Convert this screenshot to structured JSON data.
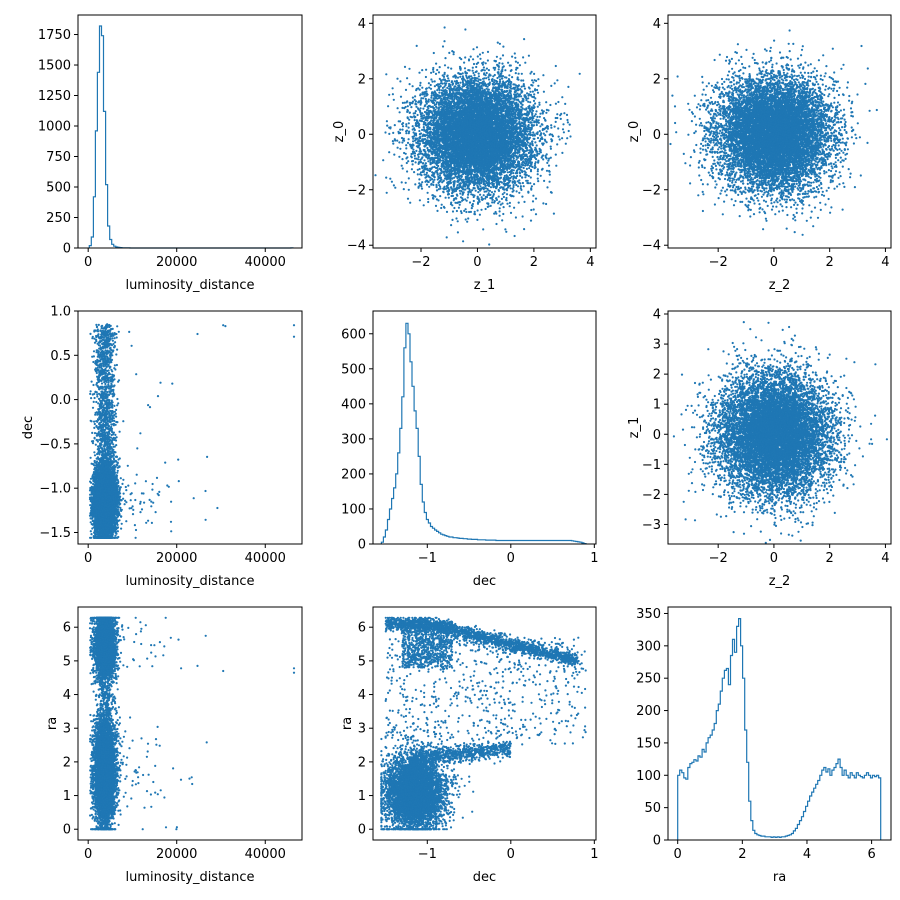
{
  "figure": {
    "colors": {
      "series": "#1f77b4",
      "axis": "#000000",
      "background": "#ffffff"
    }
  },
  "chart_data": [
    {
      "id": "p00",
      "type": "histogram",
      "xlabel": "luminosity_distance",
      "ylabel": "",
      "xlim": [
        -2300,
        48300
      ],
      "ylim": [
        0,
        1910
      ],
      "xticks": [
        0,
        20000,
        40000
      ],
      "xtick_labels": [
        "0",
        "20000",
        "40000"
      ],
      "yticks": [
        0,
        250,
        500,
        750,
        1000,
        1250,
        1500,
        1750
      ],
      "ytick_labels": [
        "0",
        "250",
        "500",
        "750",
        "1000",
        "1250",
        "1500",
        "1750"
      ],
      "bins": {
        "start": 250,
        "width": 460
      },
      "values": [
        20,
        90,
        420,
        960,
        1440,
        1820,
        1740,
        1120,
        520,
        180,
        70,
        30,
        15,
        8,
        5,
        3,
        2,
        1,
        1,
        1,
        0,
        0,
        0,
        0,
        0,
        0,
        0,
        0,
        0,
        0,
        0,
        0,
        0,
        0,
        0,
        0,
        0,
        0,
        0,
        0,
        0,
        0,
        0,
        0,
        0,
        0,
        0,
        0,
        0,
        0,
        0,
        0,
        0,
        0,
        0,
        0,
        0,
        0,
        0,
        0,
        0,
        0,
        0,
        0,
        0,
        0,
        0,
        0,
        0,
        0,
        0,
        0,
        0,
        0,
        0,
        0,
        0,
        0,
        0,
        0,
        0,
        0,
        0,
        0,
        0,
        0,
        0,
        0,
        0,
        0,
        0,
        0,
        0,
        0,
        0,
        0,
        0,
        0,
        0,
        1
      ]
    },
    {
      "id": "p01",
      "type": "scatter",
      "xlabel": "z_1",
      "ylabel": "z_0",
      "xlim": [
        -3.7,
        4.2
      ],
      "ylim": [
        -4.1,
        4.3
      ],
      "xticks": [
        -2,
        0,
        2,
        4
      ],
      "xtick_labels": [
        "−2",
        "0",
        "2",
        "4"
      ],
      "yticks": [
        -4,
        -2,
        0,
        2,
        4
      ],
      "ytick_labels": [
        "−4",
        "−2",
        "0",
        "2",
        "4"
      ],
      "distribution": {
        "kind": "gaussian2d",
        "n": 10000,
        "mean": [
          0,
          0
        ],
        "std": [
          1,
          1
        ]
      }
    },
    {
      "id": "p02",
      "type": "scatter",
      "xlabel": "z_2",
      "ylabel": "z_0",
      "xlim": [
        -3.8,
        4.2
      ],
      "ylim": [
        -4.1,
        4.3
      ],
      "xticks": [
        -2,
        0,
        2,
        4
      ],
      "xtick_labels": [
        "−2",
        "0",
        "2",
        "4"
      ],
      "yticks": [
        -4,
        -2,
        0,
        2,
        4
      ],
      "ytick_labels": [
        "−4",
        "−2",
        "0",
        "2",
        "4"
      ],
      "distribution": {
        "kind": "gaussian2d",
        "n": 10000,
        "mean": [
          0,
          0
        ],
        "std": [
          1,
          1
        ]
      }
    },
    {
      "id": "p10",
      "type": "scatter",
      "xlabel": "luminosity_distance",
      "ylabel": "dec",
      "xlim": [
        -2300,
        48300
      ],
      "ylim": [
        -1.63,
        1.0
      ],
      "xticks": [
        0,
        20000,
        40000
      ],
      "xtick_labels": [
        "0",
        "20000",
        "40000"
      ],
      "yticks": [
        -1.5,
        -1.0,
        -0.5,
        0.0,
        0.5,
        1.0
      ],
      "ytick_labels": [
        "−1.5",
        "−1.0",
        "−0.5",
        "0.0",
        "0.5",
        "1.0"
      ],
      "distribution": {
        "kind": "ldist_dec",
        "n": 9000
      }
    },
    {
      "id": "p11",
      "type": "histogram",
      "xlabel": "dec",
      "ylabel": "",
      "xlim": [
        -1.65,
        1.02
      ],
      "ylim": [
        0,
        665
      ],
      "xticks": [
        -1,
        0,
        1
      ],
      "xtick_labels": [
        "−1",
        "0",
        "1"
      ],
      "yticks": [
        0,
        100,
        200,
        300,
        400,
        500,
        600
      ],
      "ytick_labels": [
        "0",
        "100",
        "200",
        "300",
        "400",
        "500",
        "600"
      ],
      "bins": {
        "start": -1.55,
        "width": 0.0245
      },
      "values": [
        5,
        20,
        40,
        70,
        100,
        130,
        160,
        200,
        260,
        330,
        420,
        560,
        630,
        600,
        520,
        450,
        380,
        330,
        250,
        170,
        120,
        90,
        70,
        60,
        50,
        45,
        40,
        36,
        32,
        28,
        26,
        24,
        22,
        20,
        20,
        18,
        18,
        17,
        16,
        16,
        15,
        15,
        14,
        14,
        13,
        13,
        13,
        12,
        12,
        12,
        12,
        11,
        11,
        11,
        11,
        11,
        10,
        10,
        10,
        10,
        10,
        10,
        10,
        10,
        10,
        10,
        10,
        10,
        10,
        10,
        10,
        10,
        10,
        10,
        10,
        10,
        10,
        10,
        10,
        10,
        10,
        10,
        10,
        10,
        10,
        10,
        10,
        10,
        10,
        10,
        10,
        10,
        10,
        9,
        8,
        7,
        6,
        5,
        3,
        1
      ]
    },
    {
      "id": "p12",
      "type": "scatter",
      "xlabel": "z_2",
      "ylabel": "z_1",
      "xlim": [
        -3.8,
        4.2
      ],
      "ylim": [
        -3.65,
        4.1
      ],
      "xticks": [
        -2,
        0,
        2,
        4
      ],
      "xtick_labels": [
        "−2",
        "0",
        "2",
        "4"
      ],
      "yticks": [
        -3,
        -2,
        -1,
        0,
        1,
        2,
        3,
        4
      ],
      "ytick_labels": [
        "−3",
        "−2",
        "−1",
        "0",
        "1",
        "2",
        "3",
        "4"
      ],
      "distribution": {
        "kind": "gaussian2d",
        "n": 10000,
        "mean": [
          0,
          0
        ],
        "std": [
          1,
          1
        ]
      }
    },
    {
      "id": "p20",
      "type": "scatter",
      "xlabel": "luminosity_distance",
      "ylabel": "ra",
      "xlim": [
        -2300,
        48300
      ],
      "ylim": [
        -0.32,
        6.6
      ],
      "xticks": [
        0,
        20000,
        40000
      ],
      "xtick_labels": [
        "0",
        "20000",
        "40000"
      ],
      "yticks": [
        0,
        1,
        2,
        3,
        4,
        5,
        6
      ],
      "ytick_labels": [
        "0",
        "1",
        "2",
        "3",
        "4",
        "5",
        "6"
      ],
      "distribution": {
        "kind": "ldist_ra",
        "n": 9000
      }
    },
    {
      "id": "p21",
      "type": "scatter",
      "xlabel": "dec",
      "ylabel": "ra",
      "xlim": [
        -1.65,
        1.02
      ],
      "ylim": [
        -0.32,
        6.6
      ],
      "xticks": [
        -1,
        0,
        1
      ],
      "xtick_labels": [
        "−1",
        "0",
        "1"
      ],
      "yticks": [
        0,
        1,
        2,
        3,
        4,
        5,
        6
      ],
      "ytick_labels": [
        "0",
        "1",
        "2",
        "3",
        "4",
        "5",
        "6"
      ],
      "distribution": {
        "kind": "dec_ra",
        "n": 9000
      }
    },
    {
      "id": "p22",
      "type": "histogram",
      "xlabel": "ra",
      "ylabel": "",
      "xlim": [
        -0.3,
        6.6
      ],
      "ylim": [
        0,
        360
      ],
      "xticks": [
        0,
        2,
        4,
        6
      ],
      "xtick_labels": [
        "0",
        "2",
        "4",
        "6"
      ],
      "yticks": [
        0,
        50,
        100,
        150,
        200,
        250,
        300,
        350
      ],
      "ytick_labels": [
        "0",
        "50",
        "100",
        "150",
        "200",
        "250",
        "300",
        "350"
      ],
      "bins": {
        "start": 0.0,
        "width": 0.0628
      },
      "values": [
        100,
        108,
        104,
        96,
        94,
        112,
        118,
        120,
        124,
        122,
        130,
        128,
        140,
        136,
        150,
        158,
        162,
        170,
        180,
        200,
        210,
        230,
        250,
        262,
        265,
        240,
        285,
        310,
        290,
        330,
        342,
        300,
        250,
        170,
        120,
        60,
        30,
        15,
        10,
        8,
        7,
        6,
        6,
        5,
        5,
        5,
        4,
        5,
        4,
        5,
        4,
        5,
        5,
        6,
        7,
        8,
        10,
        14,
        18,
        24,
        30,
        36,
        44,
        52,
        60,
        68,
        74,
        80,
        86,
        92,
        100,
        108,
        112,
        105,
        110,
        100,
        108,
        112,
        118,
        125,
        112,
        100,
        108,
        100,
        96,
        104,
        100,
        96,
        104,
        100,
        98,
        96,
        100,
        104,
        100,
        96,
        100,
        98,
        100,
        96
      ]
    }
  ]
}
